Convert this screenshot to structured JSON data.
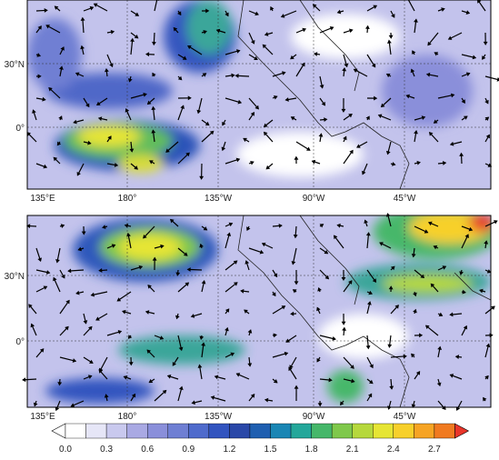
{
  "panels": [
    {
      "x_labels": [
        "135°E",
        "180°",
        "135°W",
        "90°W",
        "45°W"
      ],
      "y_labels": [
        "30°N",
        "0°"
      ]
    },
    {
      "x_labels": [
        "135°E",
        "180°",
        "135°W",
        "90°W",
        "45°W"
      ],
      "y_labels": [
        "30°N",
        "0°"
      ]
    }
  ],
  "colorbar": {
    "labels": [
      "0.0",
      "0.3",
      "0.6",
      "0.9",
      "1.2",
      "1.5",
      "1.8",
      "2.1",
      "2.4",
      "2.7"
    ],
    "colors": [
      "#ffffff",
      "#ffffff",
      "#e6e6f7",
      "#c9c9ee",
      "#a9a9e3",
      "#8a8fda",
      "#6f7fd3",
      "#4f6bcc",
      "#3254bf",
      "#2a48a8",
      "#1f5fb0",
      "#1a86b4",
      "#24a79a",
      "#46b76a",
      "#7fc84b",
      "#b6d83c",
      "#e6e534",
      "#f7d02b",
      "#f6a424",
      "#f07a20",
      "#e8352a"
    ]
  }
}
